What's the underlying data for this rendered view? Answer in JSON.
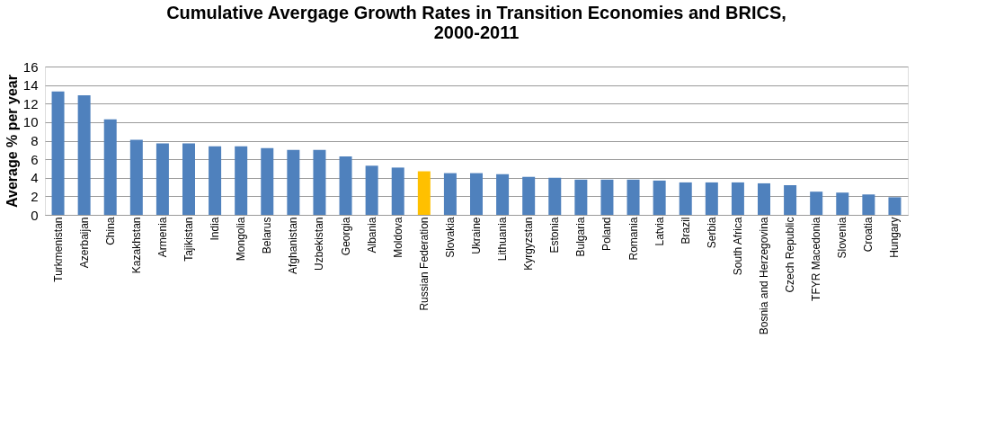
{
  "chart_data": {
    "type": "bar",
    "title": "Cumulative Avergage Growth Rates in Transition Economies and BRICS, 2000-2011",
    "ylabel": "Average % per year",
    "categories": [
      "Turkmenistan",
      "Azerbaijan",
      "China",
      "Kazakhstan",
      "Armenia",
      "Tajikistan",
      "India",
      "Mongolia",
      "Belarus",
      "Afghanistan",
      "Uzbekistan",
      "Georgia",
      "Albania",
      "Moldova",
      "Russian Federation",
      "Slovakia",
      "Ukraine",
      "Lithuania",
      "Kyrgyzstan",
      "Estonia",
      "Bulgaria",
      "Poland",
      "Romania",
      "Latvia",
      "Brazil",
      "Serbia",
      "South Africa",
      "Bosnia and Herzegovina",
      "Czech Republic",
      "TFYR Macedonia",
      "Slovenia",
      "Croatia",
      "Hungary"
    ],
    "values": [
      13.3,
      12.9,
      10.3,
      8.1,
      7.7,
      7.7,
      7.4,
      7.4,
      7.2,
      7.0,
      7.0,
      6.3,
      5.3,
      5.1,
      4.7,
      4.5,
      4.5,
      4.4,
      4.1,
      4.0,
      3.8,
      3.8,
      3.8,
      3.7,
      3.5,
      3.5,
      3.5,
      3.4,
      3.2,
      2.5,
      2.4,
      2.2,
      1.9
    ],
    "colors": [
      "#4f81bd",
      "#4f81bd",
      "#4f81bd",
      "#4f81bd",
      "#4f81bd",
      "#4f81bd",
      "#4f81bd",
      "#4f81bd",
      "#4f81bd",
      "#4f81bd",
      "#4f81bd",
      "#4f81bd",
      "#4f81bd",
      "#4f81bd",
      "#ffc000",
      "#4f81bd",
      "#4f81bd",
      "#4f81bd",
      "#4f81bd",
      "#4f81bd",
      "#4f81bd",
      "#4f81bd",
      "#4f81bd",
      "#4f81bd",
      "#4f81bd",
      "#4f81bd",
      "#4f81bd",
      "#4f81bd",
      "#4f81bd",
      "#4f81bd",
      "#4f81bd",
      "#4f81bd",
      "#4f81bd"
    ],
    "ylim": [
      0,
      16
    ],
    "yticks": [
      0,
      2,
      4,
      6,
      8,
      10,
      12,
      14,
      16
    ],
    "grid": "y"
  }
}
